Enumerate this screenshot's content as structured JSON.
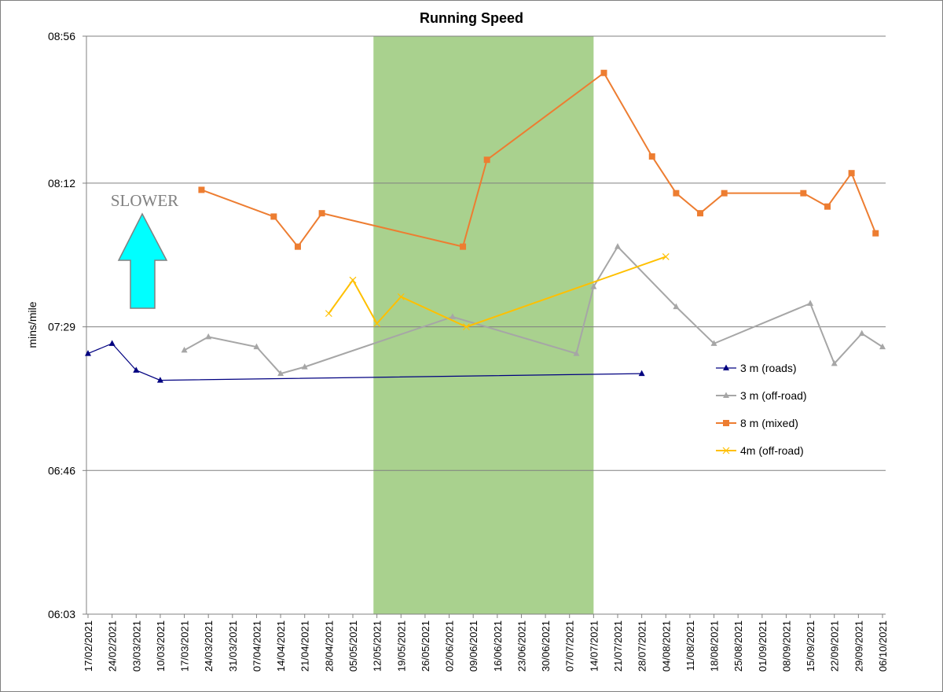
{
  "chart_data": {
    "type": "line",
    "title": "Running Speed",
    "ylabel": "mins/mile",
    "xlabel": "",
    "y_unit": "mm:ss per mile",
    "ylim": [
      "06:03",
      "08:56"
    ],
    "y_ticks": [
      "06:03",
      "06:46",
      "07:29",
      "08:12",
      "08:56"
    ],
    "x_range": [
      "2021-02-17",
      "2021-10-06"
    ],
    "x_ticks": [
      "17/02/2021",
      "24/02/2021",
      "03/03/2021",
      "10/03/2021",
      "17/03/2021",
      "24/03/2021",
      "31/03/2021",
      "07/04/2021",
      "14/04/2021",
      "21/04/2021",
      "28/04/2021",
      "05/05/2021",
      "12/05/2021",
      "19/05/2021",
      "26/05/2021",
      "02/06/2021",
      "09/06/2021",
      "16/06/2021",
      "23/06/2021",
      "30/06/2021",
      "07/07/2021",
      "14/07/2021",
      "21/07/2021",
      "28/07/2021",
      "04/08/2021",
      "11/08/2021",
      "18/08/2021",
      "25/08/2021",
      "01/09/2021",
      "08/09/2021",
      "15/09/2021",
      "22/09/2021",
      "29/09/2021",
      "06/10/2021"
    ],
    "grid": "horizontal",
    "legend_position": "right",
    "shaded_region": {
      "from": "2021-05-11",
      "to": "2021-07-14",
      "color": "#a9d18e"
    },
    "series": [
      {
        "name": "3 m (roads)",
        "color": "#000080",
        "marker": "triangle",
        "points": [
          {
            "x": "2021-02-17",
            "y": "07:21"
          },
          {
            "x": "2021-02-24",
            "y": "07:24"
          },
          {
            "x": "2021-03-03",
            "y": "07:16"
          },
          {
            "x": "2021-03-10",
            "y": "07:13"
          },
          {
            "x": "2021-07-28",
            "y": "07:15"
          }
        ]
      },
      {
        "name": "3 m (off-road)",
        "color": "#a6a6a6",
        "marker": "triangle",
        "points": [
          {
            "x": "2021-03-17",
            "y": "07:22"
          },
          {
            "x": "2021-03-24",
            "y": "07:26"
          },
          {
            "x": "2021-04-07",
            "y": "07:23"
          },
          {
            "x": "2021-04-14",
            "y": "07:15"
          },
          {
            "x": "2021-04-21",
            "y": "07:17"
          },
          {
            "x": "2021-06-03",
            "y": "07:32"
          },
          {
            "x": "2021-07-09",
            "y": "07:21"
          },
          {
            "x": "2021-07-14",
            "y": "07:41"
          },
          {
            "x": "2021-07-21",
            "y": "07:53"
          },
          {
            "x": "2021-08-07",
            "y": "07:35"
          },
          {
            "x": "2021-08-18",
            "y": "07:24"
          },
          {
            "x": "2021-09-15",
            "y": "07:36"
          },
          {
            "x": "2021-09-22",
            "y": "07:18"
          },
          {
            "x": "2021-09-30",
            "y": "07:27"
          },
          {
            "x": "2021-10-06",
            "y": "07:23"
          }
        ]
      },
      {
        "name": "8 m (mixed)",
        "color": "#ed7d31",
        "marker": "square",
        "points": [
          {
            "x": "2021-03-22",
            "y": "08:10"
          },
          {
            "x": "2021-04-12",
            "y": "08:02"
          },
          {
            "x": "2021-04-19",
            "y": "07:53"
          },
          {
            "x": "2021-04-26",
            "y": "08:03"
          },
          {
            "x": "2021-06-06",
            "y": "07:53"
          },
          {
            "x": "2021-06-13",
            "y": "08:19"
          },
          {
            "x": "2021-07-17",
            "y": "08:45"
          },
          {
            "x": "2021-07-31",
            "y": "08:20"
          },
          {
            "x": "2021-08-07",
            "y": "08:09"
          },
          {
            "x": "2021-08-14",
            "y": "08:03"
          },
          {
            "x": "2021-08-21",
            "y": "08:09"
          },
          {
            "x": "2021-09-13",
            "y": "08:09"
          },
          {
            "x": "2021-09-20",
            "y": "08:05"
          },
          {
            "x": "2021-09-27",
            "y": "08:15"
          },
          {
            "x": "2021-10-04",
            "y": "07:57"
          }
        ]
      },
      {
        "name": "4m (off-road)",
        "color": "#ffc000",
        "marker": "x",
        "points": [
          {
            "x": "2021-04-28",
            "y": "07:33"
          },
          {
            "x": "2021-05-05",
            "y": "07:43"
          },
          {
            "x": "2021-05-12",
            "y": "07:30"
          },
          {
            "x": "2021-05-19",
            "y": "07:38"
          },
          {
            "x": "2021-06-07",
            "y": "07:29"
          },
          {
            "x": "2021-08-04",
            "y": "07:50"
          }
        ]
      }
    ]
  },
  "annotation": {
    "text": "SLOWER",
    "arrow_color": "#00ffff",
    "text_color": "#808080"
  }
}
